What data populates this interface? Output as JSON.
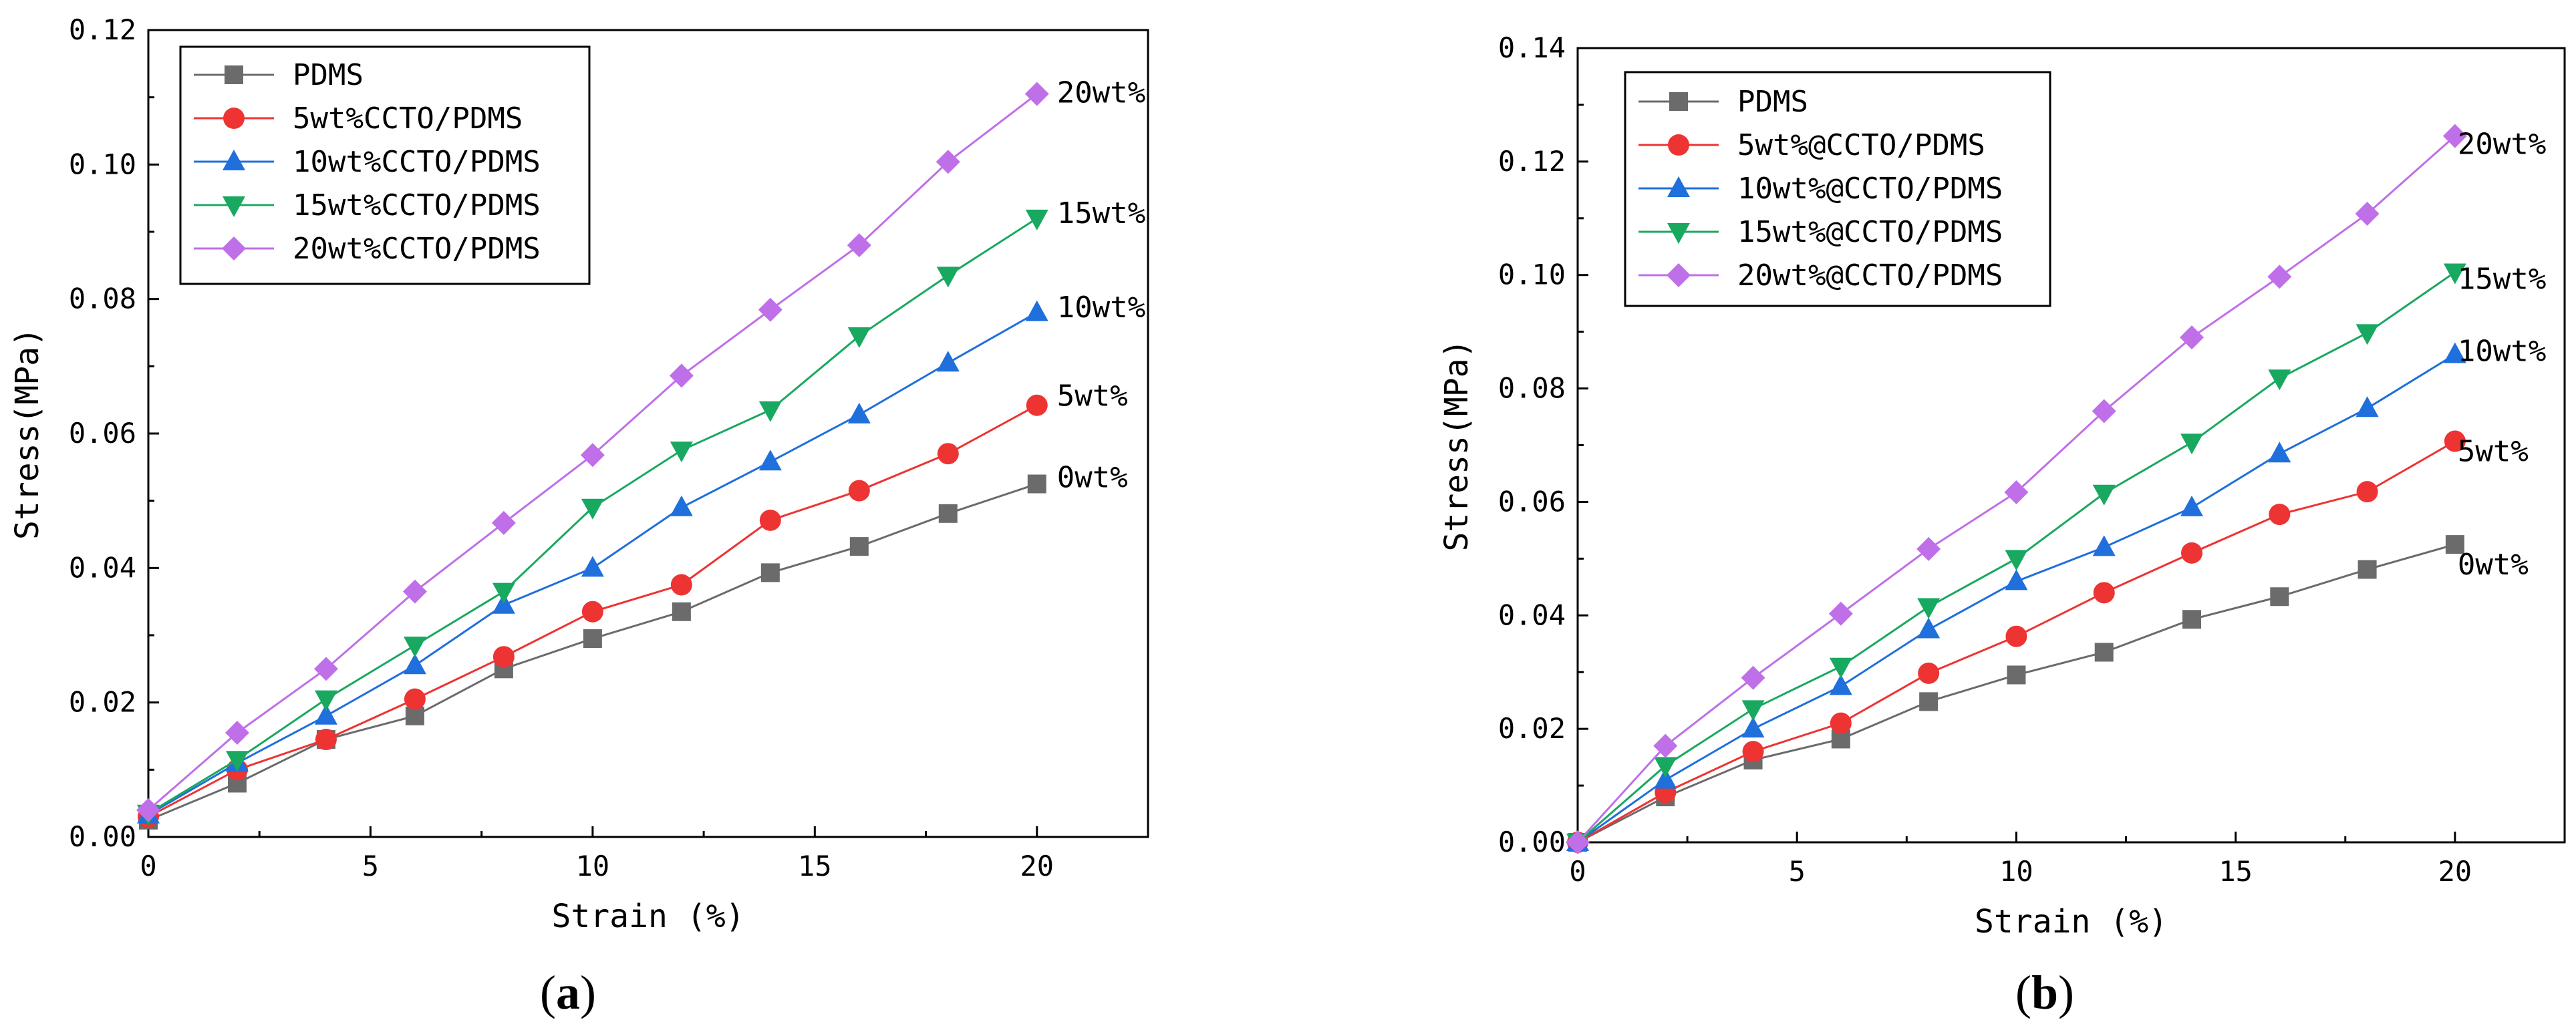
{
  "chart_data": [
    {
      "type": "line",
      "panel_label": "a",
      "xlabel": "Strain (%)",
      "ylabel": "Stress(MPa)",
      "xlim": [
        0,
        22.5
      ],
      "ylim": [
        0,
        0.12
      ],
      "xticks": [
        0,
        5,
        10,
        15,
        20
      ],
      "xtick_labels": [
        "0",
        "5",
        "10",
        "15",
        "20"
      ],
      "yticks": [
        0,
        0.02,
        0.04,
        0.06,
        0.08,
        0.1,
        0.12
      ],
      "ytick_labels": [
        "0.00",
        "0.02",
        "0.04",
        "0.06",
        "0.08",
        "0.10",
        "0.12"
      ],
      "x": [
        0,
        2,
        4,
        6,
        8,
        10,
        12,
        14,
        16,
        18,
        20
      ],
      "legend_position": "top-left",
      "series": [
        {
          "name": "PDMS",
          "end_label": "0wt%",
          "color": "#6b6b6b",
          "marker": "square",
          "values": [
            0.0025,
            0.008,
            0.0145,
            0.018,
            0.025,
            0.0295,
            0.0335,
            0.0393,
            0.0432,
            0.0481,
            0.0525
          ]
        },
        {
          "name": "5wt%CCTO/PDMS",
          "end_label": "5wt%",
          "color": "#ee3333",
          "marker": "circle",
          "values": [
            0.003,
            0.01,
            0.0145,
            0.0205,
            0.0268,
            0.0335,
            0.0375,
            0.0471,
            0.0515,
            0.057,
            0.0642
          ]
        },
        {
          "name": "10wt%CCTO/PDMS",
          "end_label": "10wt%",
          "color": "#1f6fdc",
          "marker": "triangle-up",
          "values": [
            0.0033,
            0.011,
            0.018,
            0.0255,
            0.0345,
            0.04,
            0.049,
            0.0558,
            0.0628,
            0.0705,
            0.078
          ]
        },
        {
          "name": "15wt%CCTO/PDMS",
          "end_label": "15wt%",
          "color": "#19a860",
          "marker": "triangle-down",
          "values": [
            0.0035,
            0.0115,
            0.0205,
            0.0285,
            0.0365,
            0.049,
            0.0575,
            0.0635,
            0.0745,
            0.0835,
            0.092
          ]
        },
        {
          "name": "20wt%CCTO/PDMS",
          "end_label": "20wt%",
          "color": "#bf6fe8",
          "marker": "diamond",
          "values": [
            0.004,
            0.0155,
            0.025,
            0.0365,
            0.0467,
            0.0568,
            0.0686,
            0.0784,
            0.088,
            0.1004,
            0.1105
          ]
        }
      ]
    },
    {
      "type": "line",
      "panel_label": "b",
      "xlabel": "Strain (%)",
      "ylabel": "Stress(MPa)",
      "xlim": [
        0,
        22.5
      ],
      "ylim": [
        0,
        0.14
      ],
      "xticks": [
        0,
        5,
        10,
        15,
        20
      ],
      "xtick_labels": [
        "0",
        "5",
        "10",
        "15",
        "20"
      ],
      "yticks": [
        0,
        0.02,
        0.04,
        0.06,
        0.08,
        0.1,
        0.12,
        0.14
      ],
      "ytick_labels": [
        "0.00",
        "0.02",
        "0.04",
        "0.06",
        "0.08",
        "0.10",
        "0.12",
        "0.14"
      ],
      "x": [
        0,
        2,
        4,
        6,
        8,
        10,
        12,
        14,
        16,
        18,
        20
      ],
      "legend_position": "top-left",
      "series": [
        {
          "name": "PDMS",
          "end_label": "0wt%",
          "color": "#6b6b6b",
          "marker": "square",
          "values": [
            0.0,
            0.008,
            0.0145,
            0.0182,
            0.0248,
            0.0295,
            0.0335,
            0.0393,
            0.0433,
            0.0481,
            0.0525
          ]
        },
        {
          "name": "5wt%@CCTO/PDMS",
          "end_label": "5wt%",
          "color": "#ee3333",
          "marker": "circle",
          "values": [
            0.0,
            0.0088,
            0.016,
            0.021,
            0.0298,
            0.0363,
            0.044,
            0.051,
            0.0578,
            0.0618,
            0.0707
          ]
        },
        {
          "name": "10wt%@CCTO/PDMS",
          "end_label": "10wt%",
          "color": "#1f6fdc",
          "marker": "triangle-up",
          "values": [
            0.0,
            0.011,
            0.02,
            0.0275,
            0.0375,
            0.046,
            0.052,
            0.059,
            0.0685,
            0.0765,
            0.086
          ]
        },
        {
          "name": "15wt%@CCTO/PDMS",
          "end_label": "15wt%",
          "color": "#19a860",
          "marker": "triangle-down",
          "values": [
            0.0,
            0.0135,
            0.0235,
            0.031,
            0.0415,
            0.05,
            0.0615,
            0.0705,
            0.0818,
            0.0898,
            0.1005
          ]
        },
        {
          "name": "20wt%@CCTO/PDMS",
          "end_label": "20wt%",
          "color": "#bf6fe8",
          "marker": "diamond",
          "values": [
            0.0,
            0.017,
            0.029,
            0.0403,
            0.0517,
            0.0617,
            0.076,
            0.089,
            0.0997,
            0.1108,
            0.1245
          ]
        }
      ]
    }
  ]
}
